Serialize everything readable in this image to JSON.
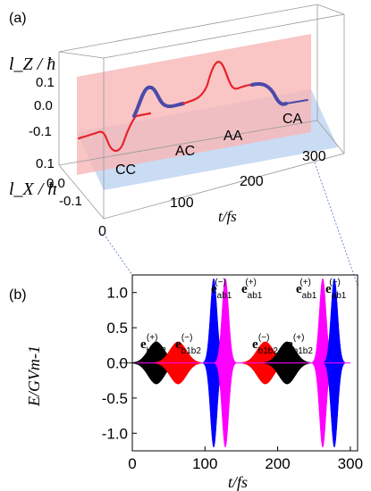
{
  "panel_a": {
    "label": "(a)",
    "y_axis_label": "l_Z / ħ",
    "depth_axis_label": "l_X / ħ",
    "x_axis_label": "t/fs",
    "z_ticks": [
      "0.1",
      "0.0",
      "-0.1"
    ],
    "x_ticks": [
      "0",
      "100",
      "200",
      "300"
    ],
    "depth_ticks": [
      "0.1",
      "0.0",
      "-0.1"
    ],
    "segment_labels": [
      "CC",
      "AC",
      "AA",
      "CA"
    ],
    "colors": {
      "red_segment": "#e8222b",
      "blue_segment": "#4a4aa8",
      "red_plane": "#f7b6b6",
      "blue_plane": "#b8cff0"
    }
  },
  "panel_b": {
    "label": "(b)",
    "annotations": [
      {
        "base": "e",
        "sub": "b1b2",
        "sup": "(+)"
      },
      {
        "base": "e",
        "sub": "b1b2",
        "sup": "(−)"
      },
      {
        "base": "e",
        "sub": "ab1",
        "sup": "(−)"
      },
      {
        "base": "e",
        "sub": "ab1",
        "sup": "(+)"
      },
      {
        "base": "e",
        "sub": "b1b2",
        "sup": "(−)"
      },
      {
        "base": "e",
        "sub": "b1b2",
        "sup": "(+)"
      },
      {
        "base": "e",
        "sub": "ab1",
        "sup": "(+)"
      },
      {
        "base": "e",
        "sub": "ab1",
        "sup": "(−)"
      }
    ]
  },
  "chart_data": {
    "type": "area",
    "xlabel": "t/fs",
    "ylabel": "E/GVm-1",
    "xlim": [
      0,
      310
    ],
    "ylim": [
      -1.25,
      1.25
    ],
    "x_ticks": [
      "0",
      "100",
      "200",
      "300"
    ],
    "y_ticks": [
      "-1.0",
      "-0.5",
      "0.0",
      "0.5",
      "1.0"
    ],
    "series": [
      {
        "color": "#000000",
        "center": 33,
        "width": 16,
        "amplitude": 0.3
      },
      {
        "color": "#ff0000",
        "center": 63,
        "width": 16,
        "amplitude": 0.3
      },
      {
        "color": "#0000ff",
        "center": 112,
        "width": 6.5,
        "amplitude": 1.2
      },
      {
        "color": "#ff00ff",
        "center": 128,
        "width": 6.5,
        "amplitude": 1.2
      },
      {
        "color": "#ff0000",
        "center": 183,
        "width": 16,
        "amplitude": 0.3
      },
      {
        "color": "#000000",
        "center": 213,
        "width": 16,
        "amplitude": 0.3
      },
      {
        "color": "#ff00ff",
        "center": 262,
        "width": 6.5,
        "amplitude": 1.2
      },
      {
        "color": "#0000ff",
        "center": 278,
        "width": 6.5,
        "amplitude": 1.2
      }
    ]
  }
}
